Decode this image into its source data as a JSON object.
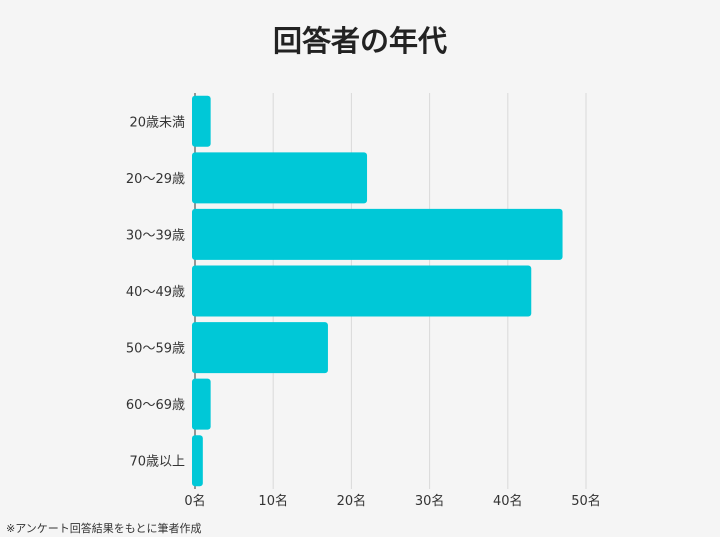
{
  "chart_data": {
    "type": "bar",
    "orientation": "horizontal",
    "title": "回答者の年代",
    "categories": [
      "20歳未満",
      "20～29歳",
      "30～39歳",
      "40～49歳",
      "50～59歳",
      "60～69歳",
      "70歳以上"
    ],
    "values": [
      2,
      22,
      47,
      43,
      17,
      2,
      1
    ],
    "xlim": [
      0,
      50
    ],
    "xticks": [
      0,
      10,
      20,
      30,
      40,
      50
    ],
    "xtick_labels": [
      "0名",
      "10名",
      "20名",
      "30名",
      "40名",
      "50名"
    ],
    "grid": "vertical",
    "bar_color": "#00c8d7",
    "grid_color": "#d9d9d9"
  },
  "footnote": "※アンケート回答結果をもとに筆者作成"
}
